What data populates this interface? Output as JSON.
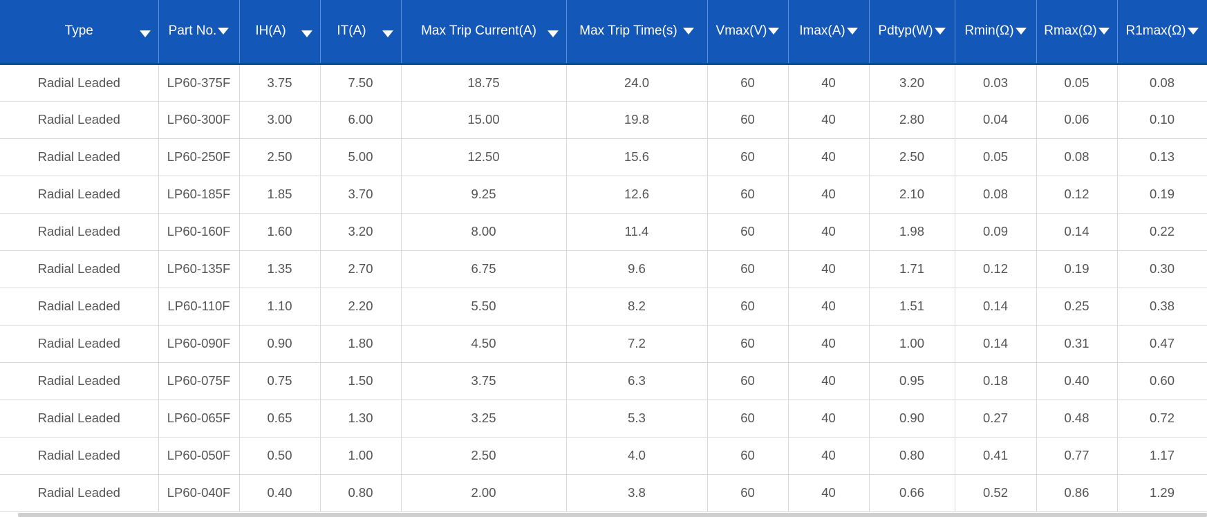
{
  "table": {
    "columns": [
      {
        "label": "Type"
      },
      {
        "label": "Part No."
      },
      {
        "label": "IH(A)"
      },
      {
        "label": "IT(A)"
      },
      {
        "label": "Max Trip Current(A)"
      },
      {
        "label": "Max Trip Time(s)"
      },
      {
        "label": "Vmax(V)"
      },
      {
        "label": "Imax(A)"
      },
      {
        "label": "Pdtyp(W)"
      },
      {
        "label": "Rmin(Ω)"
      },
      {
        "label": "Rmax(Ω)"
      },
      {
        "label": "R1max(Ω)"
      }
    ],
    "rows": [
      [
        "Radial Leaded",
        "LP60-375F",
        "3.75",
        "7.50",
        "18.75",
        "24.0",
        "60",
        "40",
        "3.20",
        "0.03",
        "0.05",
        "0.08"
      ],
      [
        "Radial Leaded",
        "LP60-300F",
        "3.00",
        "6.00",
        "15.00",
        "19.8",
        "60",
        "40",
        "2.80",
        "0.04",
        "0.06",
        "0.10"
      ],
      [
        "Radial Leaded",
        "LP60-250F",
        "2.50",
        "5.00",
        "12.50",
        "15.6",
        "60",
        "40",
        "2.50",
        "0.05",
        "0.08",
        "0.13"
      ],
      [
        "Radial Leaded",
        "LP60-185F",
        "1.85",
        "3.70",
        "9.25",
        "12.6",
        "60",
        "40",
        "2.10",
        "0.08",
        "0.12",
        "0.19"
      ],
      [
        "Radial Leaded",
        "LP60-160F",
        "1.60",
        "3.20",
        "8.00",
        "11.4",
        "60",
        "40",
        "1.98",
        "0.09",
        "0.14",
        "0.22"
      ],
      [
        "Radial Leaded",
        "LP60-135F",
        "1.35",
        "2.70",
        "6.75",
        "9.6",
        "60",
        "40",
        "1.71",
        "0.12",
        "0.19",
        "0.30"
      ],
      [
        "Radial Leaded",
        "LP60-110F",
        "1.10",
        "2.20",
        "5.50",
        "8.2",
        "60",
        "40",
        "1.51",
        "0.14",
        "0.25",
        "0.38"
      ],
      [
        "Radial Leaded",
        "LP60-090F",
        "0.90",
        "1.80",
        "4.50",
        "7.2",
        "60",
        "40",
        "1.00",
        "0.14",
        "0.31",
        "0.47"
      ],
      [
        "Radial Leaded",
        "LP60-075F",
        "0.75",
        "1.50",
        "3.75",
        "6.3",
        "60",
        "40",
        "0.95",
        "0.18",
        "0.40",
        "0.60"
      ],
      [
        "Radial Leaded",
        "LP60-065F",
        "0.65",
        "1.30",
        "3.25",
        "5.3",
        "60",
        "40",
        "0.90",
        "0.27",
        "0.48",
        "0.72"
      ],
      [
        "Radial Leaded",
        "LP60-050F",
        "0.50",
        "1.00",
        "2.50",
        "4.0",
        "60",
        "40",
        "0.80",
        "0.41",
        "0.77",
        "1.17"
      ],
      [
        "Radial Leaded",
        "LP60-040F",
        "0.40",
        "0.80",
        "2.00",
        "3.8",
        "60",
        "40",
        "0.66",
        "0.52",
        "0.86",
        "1.29"
      ]
    ]
  },
  "colors": {
    "header_bg": "#1358b8",
    "header_text": "#ffffff",
    "cell_text": "#555555",
    "grid_line": "#d9d9d9"
  },
  "icons": {
    "sort": "caret-down-icon"
  }
}
